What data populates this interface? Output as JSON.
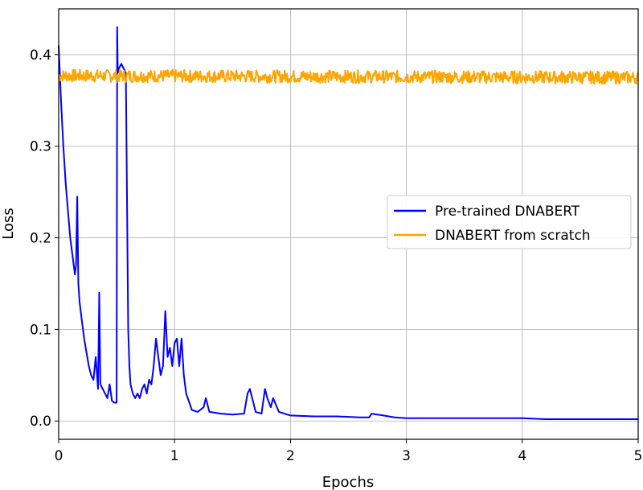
{
  "chart_data": {
    "type": "line",
    "title": "",
    "xlabel": "Epochs",
    "ylabel": "Loss",
    "xlim": [
      0,
      5
    ],
    "ylim": [
      -0.02,
      0.45
    ],
    "xticks": [
      0,
      1,
      2,
      3,
      4,
      5
    ],
    "xtick_labels": [
      "0",
      "1",
      "2",
      "3",
      "4",
      "5"
    ],
    "yticks": [
      0.0,
      0.1,
      0.2,
      0.3,
      0.4
    ],
    "ytick_labels": [
      "0.0",
      "0.1",
      "0.2",
      "0.3",
      "0.4"
    ],
    "grid": true,
    "legend_position": "center-right",
    "series": [
      {
        "name": "Pre-trained DNABERT",
        "color": "#0000ff",
        "x": [
          0,
          0.02,
          0.04,
          0.06,
          0.08,
          0.1,
          0.12,
          0.14,
          0.15,
          0.16,
          0.17,
          0.18,
          0.2,
          0.22,
          0.24,
          0.26,
          0.28,
          0.3,
          0.32,
          0.34,
          0.35,
          0.36,
          0.38,
          0.4,
          0.42,
          0.44,
          0.46,
          0.48,
          0.5,
          0.505,
          0.51,
          0.52,
          0.54,
          0.56,
          0.58,
          0.6,
          0.61,
          0.62,
          0.64,
          0.66,
          0.68,
          0.7,
          0.72,
          0.74,
          0.76,
          0.78,
          0.8,
          0.82,
          0.84,
          0.86,
          0.88,
          0.9,
          0.92,
          0.94,
          0.96,
          0.98,
          1.0,
          1.02,
          1.04,
          1.06,
          1.08,
          1.1,
          1.15,
          1.2,
          1.25,
          1.27,
          1.3,
          1.4,
          1.5,
          1.6,
          1.63,
          1.65,
          1.7,
          1.75,
          1.78,
          1.8,
          1.83,
          1.85,
          1.9,
          2.0,
          2.2,
          2.4,
          2.6,
          2.68,
          2.7,
          2.8,
          2.9,
          3.0,
          3.2,
          3.4,
          3.6,
          3.8,
          4.0,
          4.2,
          4.4,
          4.6,
          4.8,
          5.0
        ],
        "y": [
          0.41,
          0.35,
          0.3,
          0.26,
          0.23,
          0.2,
          0.18,
          0.16,
          0.17,
          0.245,
          0.15,
          0.13,
          0.11,
          0.09,
          0.075,
          0.06,
          0.05,
          0.045,
          0.07,
          0.035,
          0.14,
          0.04,
          0.035,
          0.03,
          0.025,
          0.04,
          0.022,
          0.02,
          0.02,
          0.43,
          0.38,
          0.385,
          0.39,
          0.385,
          0.38,
          0.1,
          0.06,
          0.04,
          0.03,
          0.025,
          0.03,
          0.025,
          0.035,
          0.04,
          0.03,
          0.045,
          0.04,
          0.06,
          0.09,
          0.07,
          0.05,
          0.06,
          0.12,
          0.07,
          0.08,
          0.06,
          0.085,
          0.09,
          0.06,
          0.09,
          0.05,
          0.03,
          0.012,
          0.01,
          0.015,
          0.025,
          0.01,
          0.008,
          0.007,
          0.008,
          0.03,
          0.035,
          0.01,
          0.008,
          0.035,
          0.025,
          0.015,
          0.025,
          0.01,
          0.006,
          0.005,
          0.005,
          0.004,
          0.004,
          0.008,
          0.006,
          0.004,
          0.003,
          0.003,
          0.003,
          0.003,
          0.003,
          0.003,
          0.002,
          0.002,
          0.002,
          0.002,
          0.002
        ]
      },
      {
        "name": "DNABERT from scratch",
        "color": "#ffa500",
        "x": [
          0,
          5
        ],
        "y": [
          0.377,
          0.375
        ],
        "noise": 0.007
      }
    ]
  }
}
